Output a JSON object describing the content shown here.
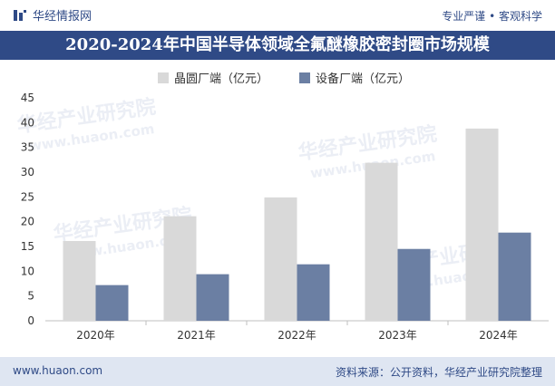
{
  "header": {
    "brand": "华经情报网",
    "tagline": "专业严谨 • 客观科学"
  },
  "title": "2020-2024年中国半导体领域全氟醚橡胶密封圈市场规模",
  "footer": {
    "website": "www.huaon.com",
    "source": "资料来源：公开资料，华经产业研究院整理"
  },
  "watermark": {
    "cn": "华经产业研究院",
    "en": "www.huaon.com"
  },
  "colors": {
    "title_bg": "#2f4a86",
    "series1": "#d9d9d9",
    "series2": "#6b7fa3",
    "footer_bg": "#dfe6f2"
  },
  "chart_data": {
    "type": "bar",
    "title": "2020-2024年中国半导体领域全氟醚橡胶密封圈市场规模",
    "categories": [
      "2020年",
      "2021年",
      "2022年",
      "2023年",
      "2024年"
    ],
    "series": [
      {
        "name": "晶圆厂端（亿元）",
        "values": [
          16.1,
          21.1,
          24.9,
          31.9,
          38.8
        ]
      },
      {
        "name": "设备厂端（亿元）",
        "values": [
          7.2,
          9.4,
          11.4,
          14.5,
          17.8
        ]
      }
    ],
    "ylim": [
      0,
      45
    ],
    "yticks": [
      0,
      5,
      10,
      15,
      20,
      25,
      30,
      35,
      40,
      45
    ],
    "xlabel": "",
    "ylabel": "",
    "grid": false,
    "legend": "top"
  }
}
